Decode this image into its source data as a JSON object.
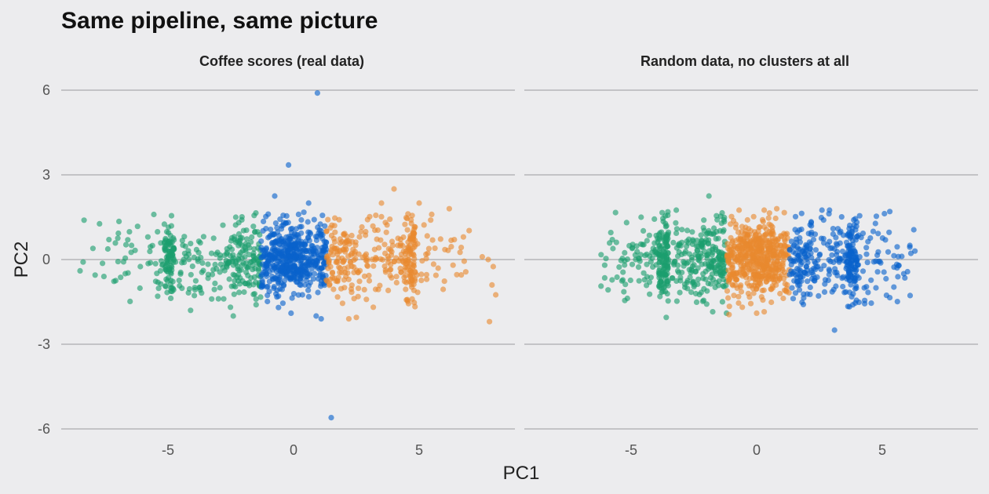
{
  "chart_data": {
    "type": "scatter",
    "title": "Same pipeline, same picture",
    "xlabel": "PC1",
    "ylabel": "PC2",
    "xlim": [
      -9,
      9
    ],
    "ylim": [
      -6.6,
      6.6
    ],
    "x_ticks": [
      -5,
      0,
      5
    ],
    "x_tick_labels": [
      "-5",
      "0",
      "5"
    ],
    "y_ticks": [
      6,
      3,
      0,
      -3,
      -6
    ],
    "y_tick_labels": [
      "6",
      "3",
      "0",
      "-3",
      "-6"
    ],
    "grid": "horizontal",
    "legend": "none",
    "colors": {
      "green": "#1b9e6e",
      "blue": "#0a62cc",
      "orange": "#e8892e"
    },
    "panels": [
      {
        "title": "Coffee scores (real data)",
        "clusters": [
          {
            "color": "green",
            "count": 340,
            "x_range": [
              -8.6,
              -1.3
            ],
            "y_sd": 0.75
          },
          {
            "color": "blue",
            "count": 520,
            "x_range": [
              -1.3,
              1.3
            ],
            "y_sd": 0.6
          },
          {
            "color": "orange",
            "count": 330,
            "x_range": [
              1.3,
              8.0
            ],
            "y_sd": 0.75
          }
        ],
        "points": {
          "green": [
            [
              -8.5,
              -0.4
            ],
            [
              -7.9,
              -0.55
            ],
            [
              -7.55,
              -0.6
            ],
            [
              -6.95,
              1.35
            ],
            [
              -6.7,
              0.05
            ],
            [
              -6.6,
              0.7
            ],
            [
              -6.45,
              0.5
            ],
            [
              -6.7,
              -0.5
            ],
            [
              -5.8,
              0.8
            ],
            [
              -6.1,
              -0.25
            ],
            [
              -5.3,
              -0.4
            ],
            [
              -4.1,
              -1.8
            ],
            [
              -2.4,
              -2.0
            ],
            [
              -2.3,
              1.5
            ],
            [
              -1.5,
              1.65
            ]
          ],
          "blue": [
            [
              0.95,
              5.9
            ],
            [
              -0.2,
              3.35
            ],
            [
              -0.75,
              2.25
            ],
            [
              0.6,
              2.0
            ],
            [
              0.2,
              1.6
            ],
            [
              0.9,
              -2.0
            ],
            [
              1.1,
              -2.1
            ],
            [
              -0.1,
              -1.9
            ],
            [
              -0.6,
              -1.7
            ],
            [
              1.5,
              -5.6
            ],
            [
              -1.2,
              1.35
            ],
            [
              1.3,
              0.6
            ]
          ],
          "orange": [
            [
              4.0,
              2.5
            ],
            [
              3.5,
              2.0
            ],
            [
              5.0,
              2.0
            ],
            [
              5.5,
              1.6
            ],
            [
              6.2,
              1.8
            ],
            [
              7.75,
              0.0
            ],
            [
              7.95,
              -0.25
            ],
            [
              7.9,
              -0.9
            ],
            [
              8.05,
              -1.25
            ],
            [
              7.8,
              -2.2
            ],
            [
              6.35,
              -0.2
            ],
            [
              5.3,
              -0.7
            ],
            [
              2.2,
              -2.1
            ],
            [
              2.5,
              -2.05
            ],
            [
              1.95,
              -1.55
            ]
          ]
        }
      },
      {
        "title": "Random data, no clusters at all",
        "clusters": [
          {
            "color": "green",
            "count": 420,
            "x_range": [
              -6.2,
              -1.2
            ],
            "y_sd": 0.7
          },
          {
            "color": "orange",
            "count": 520,
            "x_range": [
              -1.2,
              1.3
            ],
            "y_sd": 0.65
          },
          {
            "color": "blue",
            "count": 360,
            "x_range": [
              1.3,
              6.3
            ],
            "y_sd": 0.7
          }
        ],
        "points": {
          "green": [
            [
              -6.05,
              -0.2
            ],
            [
              -6.05,
              -0.65
            ],
            [
              -5.25,
              -1.45
            ],
            [
              -4.6,
              1.5
            ],
            [
              -3.6,
              -2.05
            ],
            [
              -1.9,
              2.25
            ],
            [
              -1.6,
              1.55
            ],
            [
              -1.2,
              -1.9
            ],
            [
              -1.75,
              -1.85
            ],
            [
              -3.2,
              1.75
            ]
          ],
          "orange": [
            [
              0.8,
              1.8
            ],
            [
              0.3,
              1.75
            ],
            [
              -0.7,
              1.75
            ],
            [
              0.3,
              -1.85
            ],
            [
              0.0,
              -1.9
            ],
            [
              -1.1,
              -1.95
            ]
          ],
          "blue": [
            [
              3.1,
              -2.5
            ],
            [
              5.3,
              1.7
            ],
            [
              6.3,
              0.3
            ],
            [
              6.1,
              0.5
            ],
            [
              5.9,
              -0.65
            ],
            [
              5.3,
              -1.35
            ],
            [
              4.3,
              -1.45
            ],
            [
              2.6,
              1.75
            ],
            [
              2.9,
              1.75
            ],
            [
              4.1,
              1.55
            ]
          ]
        }
      }
    ]
  }
}
